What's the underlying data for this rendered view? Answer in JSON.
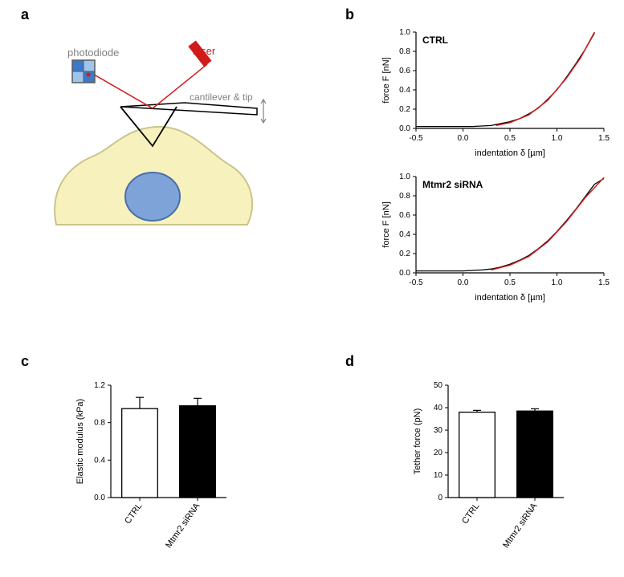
{
  "panelLabels": {
    "a": "a",
    "b": "b",
    "c": "c",
    "d": "d"
  },
  "diagram": {
    "labels": {
      "photodiode": "photodiode",
      "laser": "laser",
      "cantilever": "cantilever & tip"
    },
    "colors": {
      "cell_fill": "#f7f2bd",
      "cell_stroke": "#c9c48a",
      "nucleus_fill": "#7da3d8",
      "nucleus_stroke": "#4a6ea8",
      "laser_body": "#d11a1a",
      "laser_beam": "#d11a1a",
      "photodiode_frame": "#5a5a5a",
      "photodiode_q1": "#3a7ac9",
      "photodiode_q2": "#9ec5ec",
      "photodiode_q3": "#9ec5ec",
      "photodiode_q4": "#3a7ac9",
      "photodiode_spot": "#d11a1a",
      "cantilever_line": "#000000",
      "reflect_beam": "#d11a1a",
      "arrow": "#808080",
      "text": "#808080"
    }
  },
  "forceCurves": {
    "xlabel": "indentation δ [µm]",
    "ylabel": "force F [nN]",
    "xlim": [
      -0.5,
      1.5
    ],
    "ylim": [
      0,
      1.0
    ],
    "xticks": [
      -0.5,
      0.0,
      0.5,
      1.0,
      1.5
    ],
    "yticks": [
      0.0,
      0.2,
      0.4,
      0.6,
      0.8,
      1.0
    ],
    "data_color": "#000000",
    "fit_color": "#d11a1a",
    "axis_color": "#000000",
    "background": "#ffffff",
    "ctrl": {
      "title": "CTRL",
      "points": [
        [
          -0.5,
          0.02
        ],
        [
          -0.4,
          0.02
        ],
        [
          -0.3,
          0.02
        ],
        [
          -0.2,
          0.02
        ],
        [
          -0.1,
          0.02
        ],
        [
          0.0,
          0.02
        ],
        [
          0.1,
          0.02
        ],
        [
          0.2,
          0.025
        ],
        [
          0.3,
          0.03
        ],
        [
          0.4,
          0.05
        ],
        [
          0.5,
          0.07
        ],
        [
          0.6,
          0.1
        ],
        [
          0.7,
          0.15
        ],
        [
          0.8,
          0.21
        ],
        [
          0.9,
          0.3
        ],
        [
          1.0,
          0.4
        ],
        [
          1.1,
          0.53
        ],
        [
          1.2,
          0.67
        ],
        [
          1.3,
          0.82
        ],
        [
          1.4,
          0.99
        ]
      ],
      "fit": [
        [
          0.35,
          0.03
        ],
        [
          0.5,
          0.06
        ],
        [
          0.7,
          0.14
        ],
        [
          0.9,
          0.29
        ],
        [
          1.1,
          0.52
        ],
        [
          1.25,
          0.73
        ],
        [
          1.4,
          1.0
        ]
      ]
    },
    "mtmr2": {
      "title": "Mtmr2 siRNA",
      "points": [
        [
          -0.5,
          0.02
        ],
        [
          -0.4,
          0.02
        ],
        [
          -0.3,
          0.02
        ],
        [
          -0.2,
          0.02
        ],
        [
          -0.1,
          0.02
        ],
        [
          0.0,
          0.02
        ],
        [
          0.1,
          0.025
        ],
        [
          0.2,
          0.03
        ],
        [
          0.3,
          0.04
        ],
        [
          0.4,
          0.06
        ],
        [
          0.5,
          0.09
        ],
        [
          0.6,
          0.13
        ],
        [
          0.7,
          0.18
        ],
        [
          0.8,
          0.25
        ],
        [
          0.9,
          0.33
        ],
        [
          1.0,
          0.43
        ],
        [
          1.1,
          0.54
        ],
        [
          1.2,
          0.66
        ],
        [
          1.3,
          0.79
        ],
        [
          1.4,
          0.92
        ],
        [
          1.5,
          0.98
        ]
      ],
      "fit": [
        [
          0.3,
          0.03
        ],
        [
          0.5,
          0.08
        ],
        [
          0.7,
          0.17
        ],
        [
          0.9,
          0.32
        ],
        [
          1.1,
          0.53
        ],
        [
          1.3,
          0.78
        ],
        [
          1.5,
          0.99
        ]
      ]
    }
  },
  "barChartC": {
    "ylabel": "Elastic modulus (kPa)",
    "ylim": [
      0,
      1.2
    ],
    "yticks": [
      0.0,
      0.4,
      0.8,
      1.2
    ],
    "categories": [
      "CTRL",
      "Mtmr2 siRNA"
    ],
    "values": [
      0.95,
      0.98
    ],
    "errors": [
      0.12,
      0.08
    ],
    "fills": [
      "#ffffff",
      "#000000"
    ],
    "strokes": [
      "#000000",
      "#000000"
    ],
    "axis_color": "#000000",
    "bar_width": 0.62
  },
  "barChartD": {
    "ylabel": "Tether force (pN)",
    "ylim": [
      0,
      50
    ],
    "yticks": [
      0,
      10,
      20,
      30,
      40,
      50
    ],
    "categories": [
      "CTRL",
      "Mtmr2 siRNA"
    ],
    "values": [
      38,
      38.5
    ],
    "errors": [
      0.8,
      1.0
    ],
    "fills": [
      "#ffffff",
      "#000000"
    ],
    "strokes": [
      "#000000",
      "#000000"
    ],
    "axis_color": "#000000",
    "bar_width": 0.62
  }
}
